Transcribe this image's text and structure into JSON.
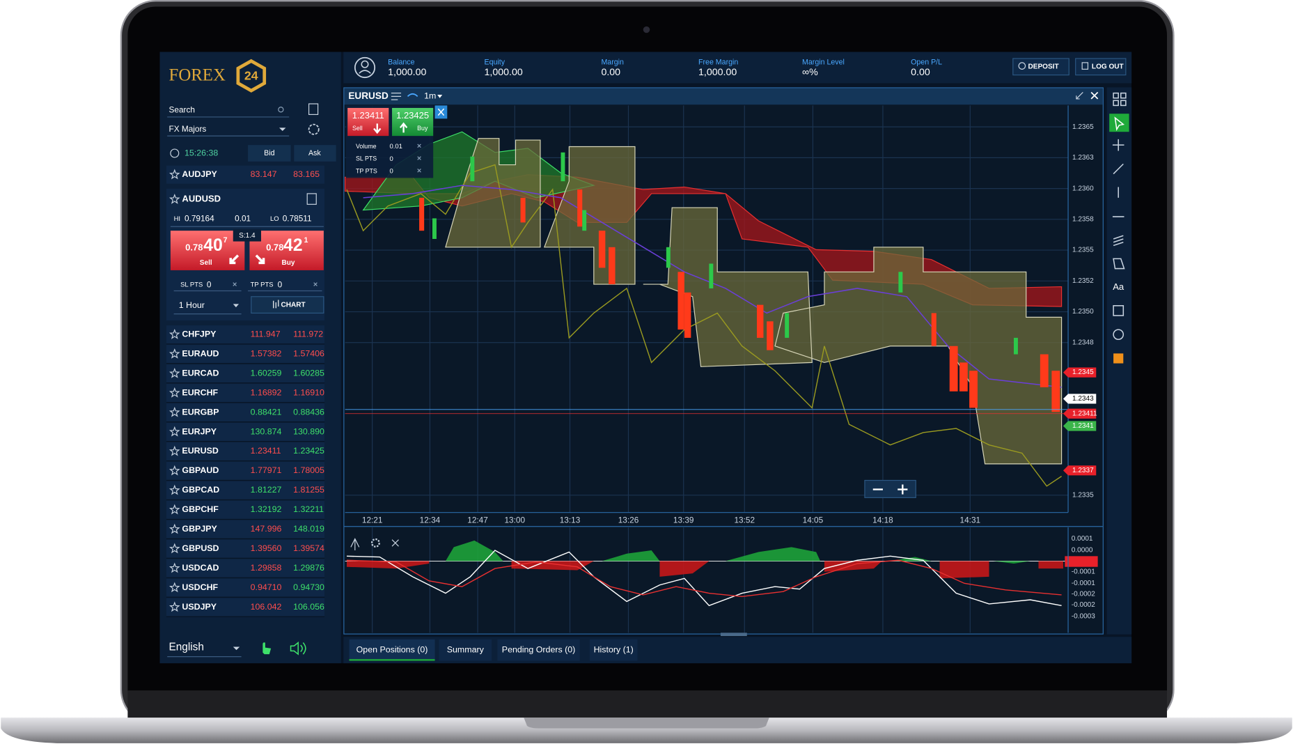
{
  "logo": {
    "text": "FOREX",
    "badge": "24"
  },
  "account": [
    {
      "label": "Balance",
      "value": "1,000.00"
    },
    {
      "label": "Equity",
      "value": "1,000.00"
    },
    {
      "label": "Margin",
      "value": "0.00"
    },
    {
      "label": "Free Margin",
      "value": "1,000.00"
    },
    {
      "label": "Margin Level",
      "value": "∞%"
    },
    {
      "label": "Open P/L",
      "value": "0.00"
    }
  ],
  "buttons": {
    "deposit": "DEPOSIT",
    "logout": "LOG OUT"
  },
  "sidebar": {
    "search": "Search",
    "group": "FX Majors",
    "time": "15:26:38",
    "bid": "Bid",
    "ask": "Ask"
  },
  "top_row": {
    "symbol": "AUDJPY",
    "bid": "83.147",
    "ask": "83.165"
  },
  "selected": {
    "symbol": "AUDUSD",
    "hi_label": "HI",
    "hi": "0.79164",
    "step": "0.01",
    "lo_label": "LO",
    "lo": "0.78511",
    "spread": "S:1.4",
    "sell_prefix": "0.78",
    "sell_big": "40",
    "sell_sup": "7",
    "sell": "Sell",
    "buy_prefix": "0.78",
    "buy_big": "42",
    "buy_sup": "1",
    "buy": "Buy",
    "sl": "SL PTS",
    "sl_value": "0",
    "tp": "TP PTS",
    "tp_value": "0",
    "timeframe": "1 Hour",
    "chart": "CHART"
  },
  "watchlist": [
    {
      "symbol": "CHFJPY",
      "bid": "111.947",
      "ask": "111.972",
      "bid_color": "red",
      "ask_color": "red"
    },
    {
      "symbol": "EURAUD",
      "bid": "1.57382",
      "ask": "1.57406",
      "bid_color": "red",
      "ask_color": "red"
    },
    {
      "symbol": "EURCAD",
      "bid": "1.60259",
      "ask": "1.60285",
      "bid_color": "green",
      "ask_color": "green"
    },
    {
      "symbol": "EURCHF",
      "bid": "1.16892",
      "ask": "1.16910",
      "bid_color": "red",
      "ask_color": "red"
    },
    {
      "symbol": "EURGBP",
      "bid": "0.88421",
      "ask": "0.88436",
      "bid_color": "green",
      "ask_color": "green"
    },
    {
      "symbol": "EURJPY",
      "bid": "130.874",
      "ask": "130.890",
      "bid_color": "green",
      "ask_color": "green"
    },
    {
      "symbol": "EURUSD",
      "bid": "1.23411",
      "ask": "1.23425",
      "bid_color": "red",
      "ask_color": "green"
    },
    {
      "symbol": "GBPAUD",
      "bid": "1.77971",
      "ask": "1.78005",
      "bid_color": "red",
      "ask_color": "red"
    },
    {
      "symbol": "GBPCAD",
      "bid": "1.81227",
      "ask": "1.81255",
      "bid_color": "green",
      "ask_color": "red"
    },
    {
      "symbol": "GBPCHF",
      "bid": "1.32192",
      "ask": "1.32211",
      "bid_color": "green",
      "ask_color": "green"
    },
    {
      "symbol": "GBPJPY",
      "bid": "147.996",
      "ask": "148.019",
      "bid_color": "red",
      "ask_color": "green"
    },
    {
      "symbol": "GBPUSD",
      "bid": "1.39560",
      "ask": "1.39574",
      "bid_color": "red",
      "ask_color": "red"
    },
    {
      "symbol": "USDCAD",
      "bid": "1.29858",
      "ask": "1.29876",
      "bid_color": "red",
      "ask_color": "green"
    },
    {
      "symbol": "USDCHF",
      "bid": "0.94710",
      "ask": "0.94730",
      "bid_color": "red",
      "ask_color": "green"
    },
    {
      "symbol": "USDJPY",
      "bid": "106.042",
      "ask": "106.056",
      "bid_color": "red",
      "ask_color": "green"
    }
  ],
  "footer": {
    "language": "English"
  },
  "chart": {
    "symbol": "EURUSD",
    "interval": "1m",
    "sell_price": "1.23411",
    "sell": "Sell",
    "buy_price": "1.23425",
    "buy": "Buy",
    "volume_label": "Volume",
    "volume": "0.01",
    "sl": "SL PTS",
    "sl_value": "0",
    "tp": "TP PTS",
    "tp_value": "0",
    "price_labels": [
      "1.2365",
      "1.2363",
      "1.2360",
      "1.2358",
      "1.2355",
      "1.2352",
      "1.2350",
      "1.2348"
    ],
    "price_bottom": "1.2335",
    "markers": [
      {
        "text": "1.2345",
        "color": "#e8212a"
      },
      {
        "text": "1.2343",
        "color": "#ffffff"
      },
      {
        "text": "1.23411",
        "color": "#e8212a"
      },
      {
        "text": "1.2341",
        "color": "#3bb54a"
      },
      {
        "text": "1.2337",
        "color": "#e8212a"
      }
    ],
    "time_labels": [
      "12:21",
      "12:34",
      "12:47",
      "13:00",
      "13:13",
      "13:26",
      "13:39",
      "13:52",
      "14:05",
      "14:18",
      "14:31"
    ],
    "osc_labels": [
      "0.0001",
      "0.0000",
      "-0.0001",
      "-0.0001",
      "-0.0002",
      "-0.0002",
      "-0.0003"
    ]
  },
  "toolbar_text": "Aa",
  "tabs": [
    "Open Positions (0)",
    "Summary",
    "Pending Orders (0)",
    "History (1)"
  ]
}
